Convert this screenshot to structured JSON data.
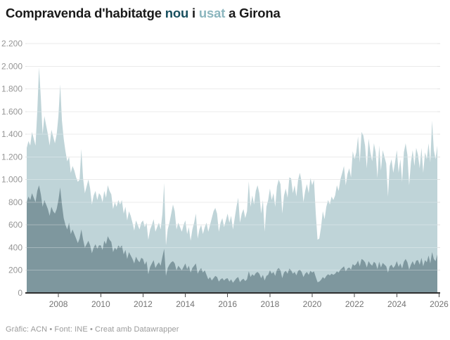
{
  "header": {
    "title_parts": [
      {
        "text": "Compravenda d'habitatge ",
        "color": "#1a1a1a"
      },
      {
        "text": "nou",
        "color": "#184f5e"
      },
      {
        "text": " i ",
        "color": "#1a1a1a"
      },
      {
        "text": "usat",
        "color": "#8cb6be"
      },
      {
        "text": " a Girona",
        "color": "#1a1a1a"
      }
    ]
  },
  "footer": {
    "credit": "Gràfic: ACN • Font: INE • Creat amb Datawrapper"
  },
  "colors": {
    "usat_fill": "#bfd4d8",
    "nou_fill": "#7e979e",
    "grid": "#e2e2e2",
    "grid_overlay": "rgba(255,255,255,0.30)",
    "baseline": "#2f2f2f",
    "tick": "#4a4a4a",
    "x_label": "#747474",
    "y_label": "#969696"
  },
  "chart_data": {
    "type": "area",
    "title": "Compravenda d'habitatge nou i usat a Girona",
    "frequency": "monthly",
    "x_start": "2006-07",
    "x_end": "2025-12",
    "ylim": [
      0,
      2200
    ],
    "y_tick_step": 200,
    "y_tick_labels": [
      "0",
      "200",
      "400",
      "600",
      "800",
      "1.000",
      "1.200",
      "1.400",
      "1.600",
      "1.800",
      "2.000",
      "2.200"
    ],
    "x_tick_labels": [
      "2008",
      "2010",
      "2012",
      "2014",
      "2016",
      "2018",
      "2020",
      "2022",
      "2024",
      "2026"
    ],
    "grid": "on",
    "legend_position": "in-title",
    "series": [
      {
        "name": "usat",
        "color": "#bfd4d8",
        "values": [
          1280,
          1340,
          1300,
          1420,
          1360,
          1300,
          1600,
          1990,
          1720,
          1400,
          1560,
          1480,
          1400,
          1300,
          1440,
          1380,
          1320,
          1400,
          1560,
          1840,
          1520,
          1360,
          1250,
          1160,
          1200,
          1060,
          1120,
          1080,
          1020,
          980,
          1000,
          1270,
          1010,
          880,
          940,
          1000,
          920,
          780,
          860,
          900,
          820,
          880,
          860,
          800,
          900,
          840,
          950,
          900,
          870,
          740,
          800,
          760,
          820,
          780,
          820,
          700,
          760,
          640,
          720,
          680,
          620,
          550,
          640,
          600,
          560,
          620,
          640,
          580,
          620,
          470,
          560,
          600,
          650,
          540,
          580,
          620,
          560,
          700,
          970,
          420,
          560,
          620,
          700,
          780,
          720,
          560,
          620,
          580,
          540,
          600,
          640,
          520,
          580,
          460,
          560,
          620,
          700,
          480,
          560,
          600,
          520,
          580,
          620,
          540,
          600,
          660,
          720,
          750,
          700,
          540,
          620,
          660,
          580,
          640,
          700,
          620,
          680,
          560,
          660,
          760,
          840,
          620,
          700,
          740,
          660,
          720,
          985,
          760,
          860,
          780,
          900,
          950,
          880,
          700,
          820,
          540,
          760,
          820,
          920,
          820,
          880,
          760,
          940,
          1000,
          960,
          700,
          860,
          920,
          840,
          1020,
          1010,
          880,
          950,
          850,
          1000,
          1060,
          980,
          800,
          900,
          960,
          880,
          1015,
          950,
          1000,
          700,
          470,
          480,
          580,
          720,
          650,
          760,
          820,
          780,
          850,
          820,
          860,
          950,
          900,
          1000,
          1060,
          1120,
          950,
          1050,
          1100,
          1020,
          1250,
          1180,
          1240,
          1380,
          1150,
          1420,
          1390,
          1300,
          1100,
          1360,
          1240,
          1160,
          1320,
          1240,
          1015,
          1300,
          1080,
          1260,
          1200,
          1140,
          850,
          1120,
          1180,
          1060,
          1150,
          1260,
          1060,
          1180,
          980,
          1240,
          1320,
          1220,
          950,
          1150,
          1260,
          1120,
          1280,
          1220,
          1100,
          1280,
          1060,
          1240,
          1180,
          1320,
          1150,
          1520,
          1260,
          1180,
          1300
        ]
      },
      {
        "name": "nou",
        "color": "#7e979e",
        "values": [
          800,
          850,
          820,
          880,
          840,
          800,
          900,
          950,
          870,
          760,
          820,
          780,
          740,
          680,
          760,
          720,
          700,
          740,
          820,
          930,
          780,
          660,
          600,
          560,
          620,
          520,
          560,
          520,
          480,
          440,
          480,
          560,
          470,
          400,
          430,
          460,
          420,
          350,
          400,
          430,
          390,
          420,
          420,
          380,
          460,
          430,
          500,
          470,
          450,
          360,
          400,
          380,
          420,
          400,
          420,
          340,
          380,
          300,
          360,
          330,
          300,
          260,
          320,
          290,
          270,
          310,
          300,
          250,
          280,
          165,
          230,
          260,
          290,
          220,
          250,
          270,
          240,
          320,
          390,
          150,
          220,
          250,
          270,
          280,
          260,
          200,
          240,
          220,
          200,
          230,
          260,
          210,
          240,
          180,
          220,
          240,
          260,
          170,
          200,
          220,
          180,
          200,
          160,
          120,
          140,
          110,
          130,
          150,
          140,
          100,
          120,
          130,
          110,
          125,
          130,
          100,
          120,
          90,
          110,
          130,
          140,
          95,
          115,
          125,
          105,
          120,
          190,
          140,
          165,
          150,
          175,
          185,
          170,
          130,
          160,
          110,
          150,
          160,
          200,
          170,
          185,
          150,
          205,
          220,
          200,
          130,
          180,
          195,
          170,
          215,
          200,
          170,
          185,
          155,
          195,
          205,
          185,
          140,
          170,
          185,
          160,
          195,
          180,
          190,
          140,
          95,
          100,
          115,
          140,
          125,
          150,
          165,
          155,
          170,
          160,
          170,
          190,
          180,
          205,
          220,
          235,
          190,
          215,
          225,
          205,
          255,
          240,
          255,
          285,
          235,
          300,
          290,
          270,
          225,
          280,
          255,
          240,
          275,
          260,
          210,
          275,
          225,
          265,
          250,
          235,
          180,
          235,
          250,
          220,
          240,
          280,
          230,
          260,
          215,
          275,
          300,
          270,
          205,
          250,
          280,
          245,
          285,
          290,
          250,
          310,
          235,
          290,
          270,
          330,
          260,
          360,
          300,
          280,
          340
        ]
      }
    ]
  }
}
